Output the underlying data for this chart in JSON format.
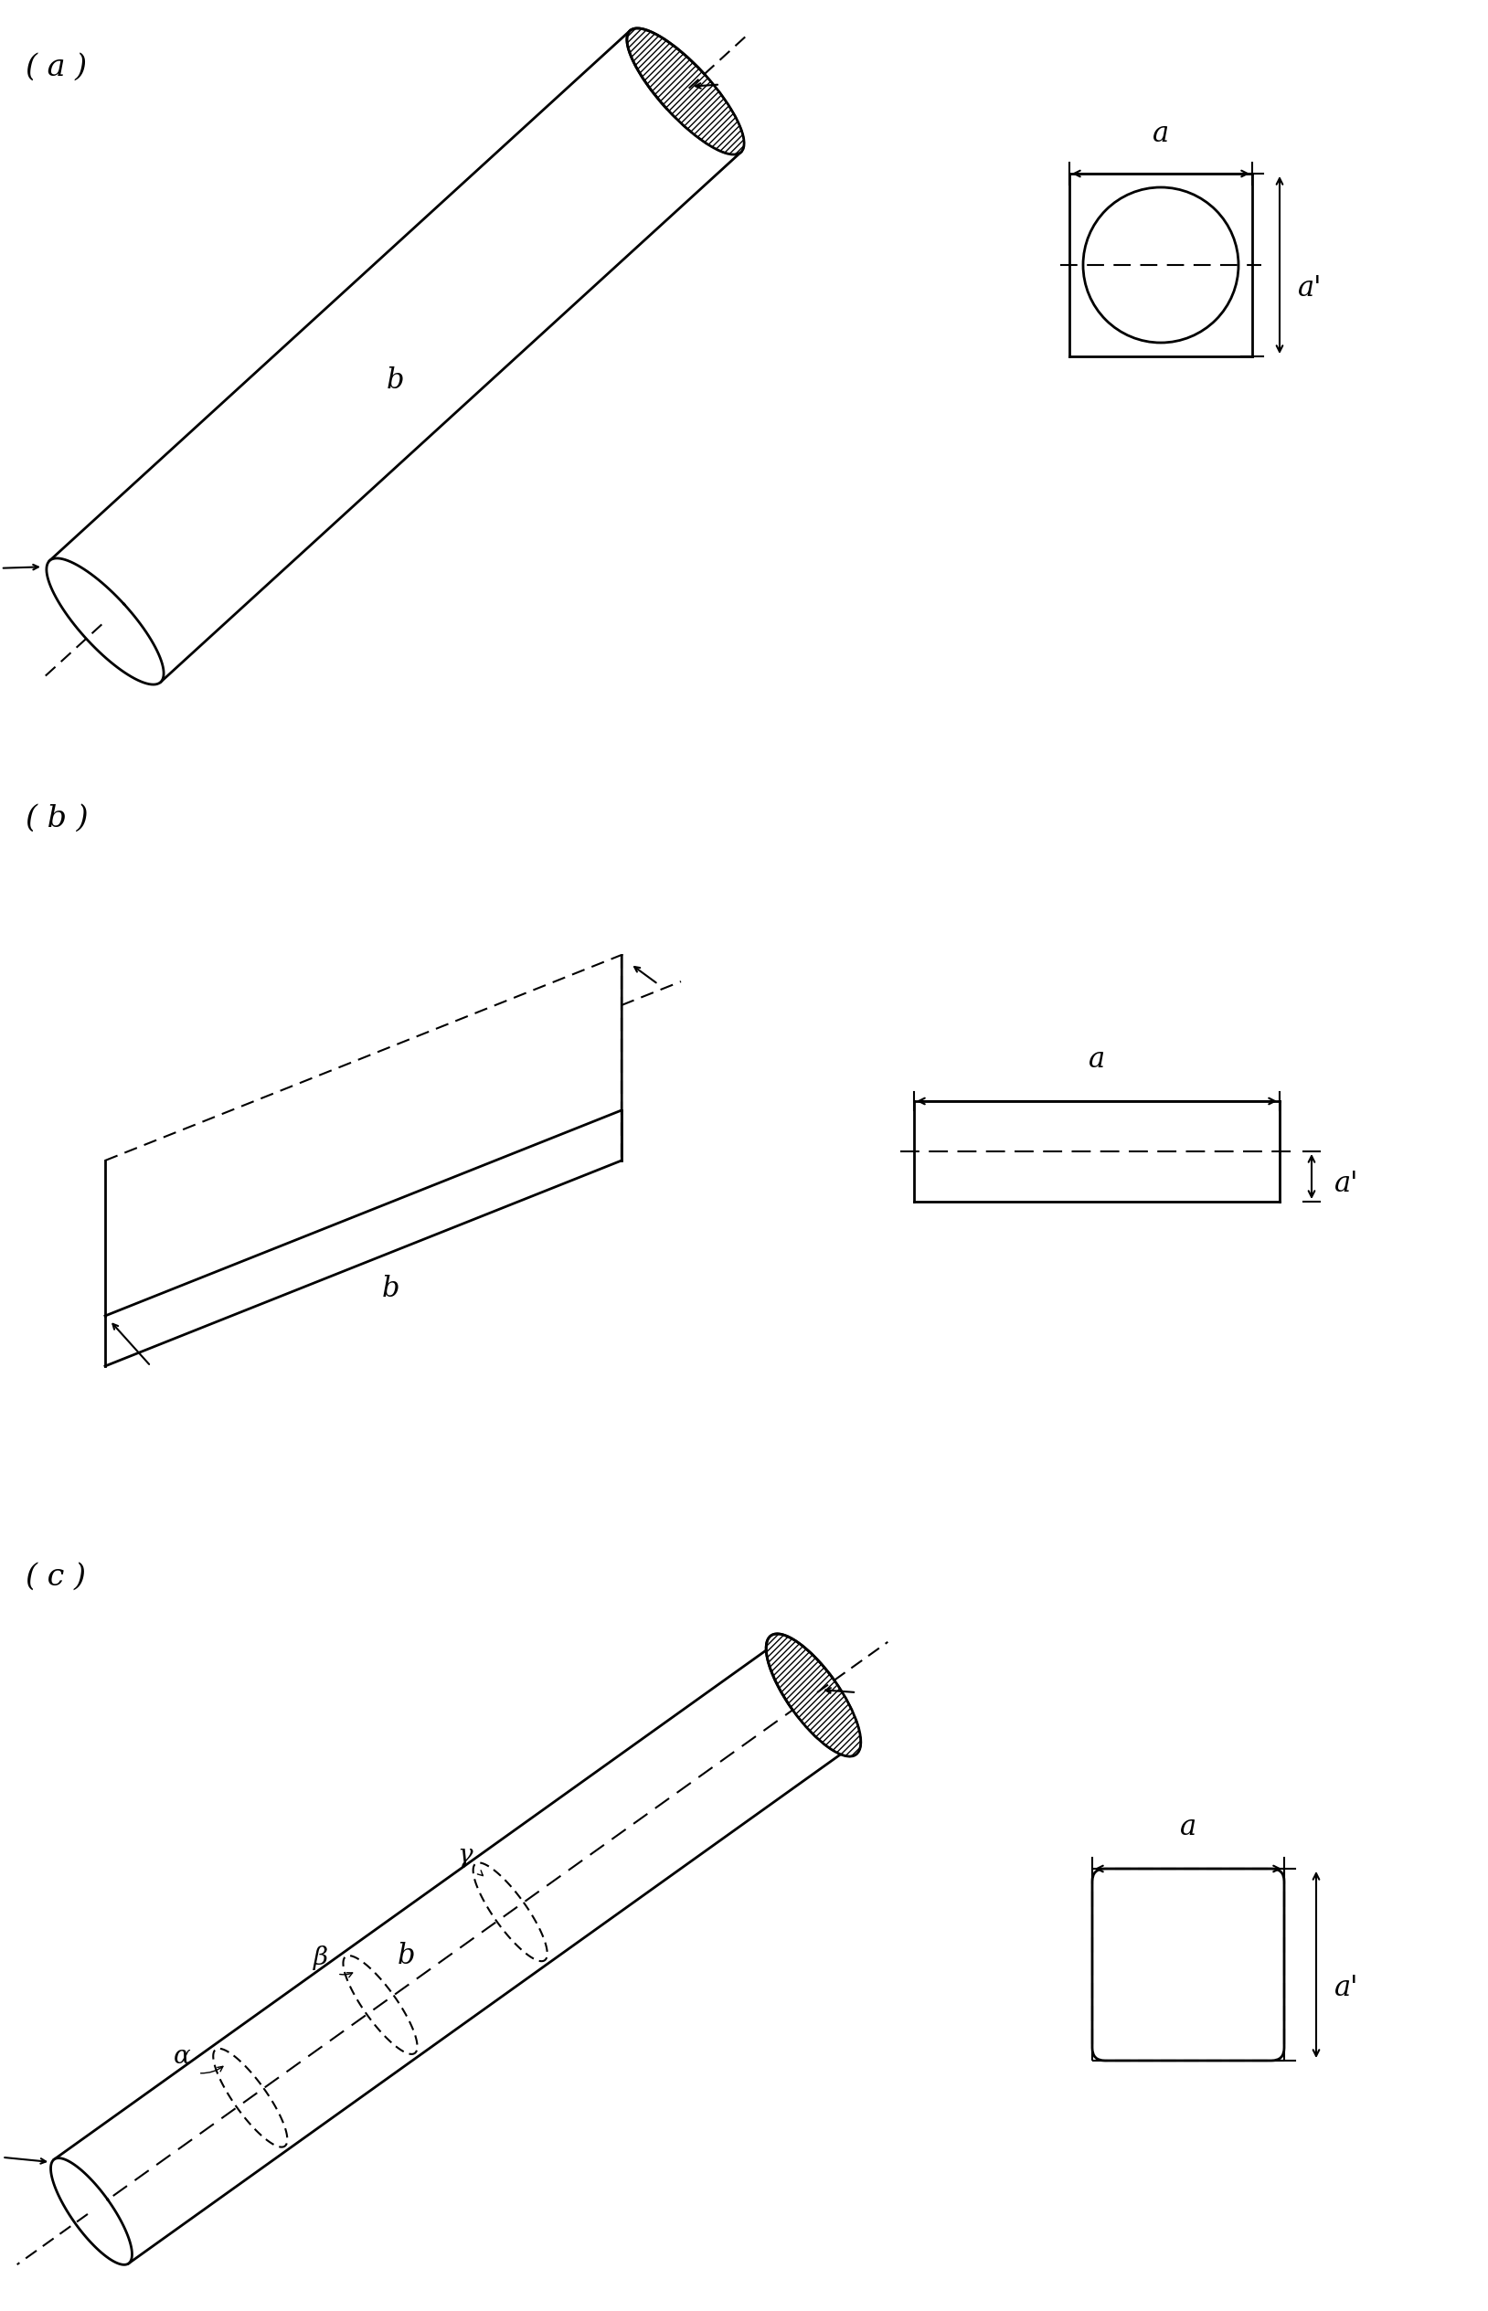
{
  "bg_color": "#ffffff",
  "label_a": "( a )",
  "label_b": "( b )",
  "label_c": "( c )",
  "dim_a": "a",
  "dim_a_prime": "a'",
  "dim_b": "b",
  "dim_alpha": "α",
  "dim_beta": "β",
  "dim_gamma": "γ",
  "lw": 2.0,
  "lw_thin": 1.5
}
